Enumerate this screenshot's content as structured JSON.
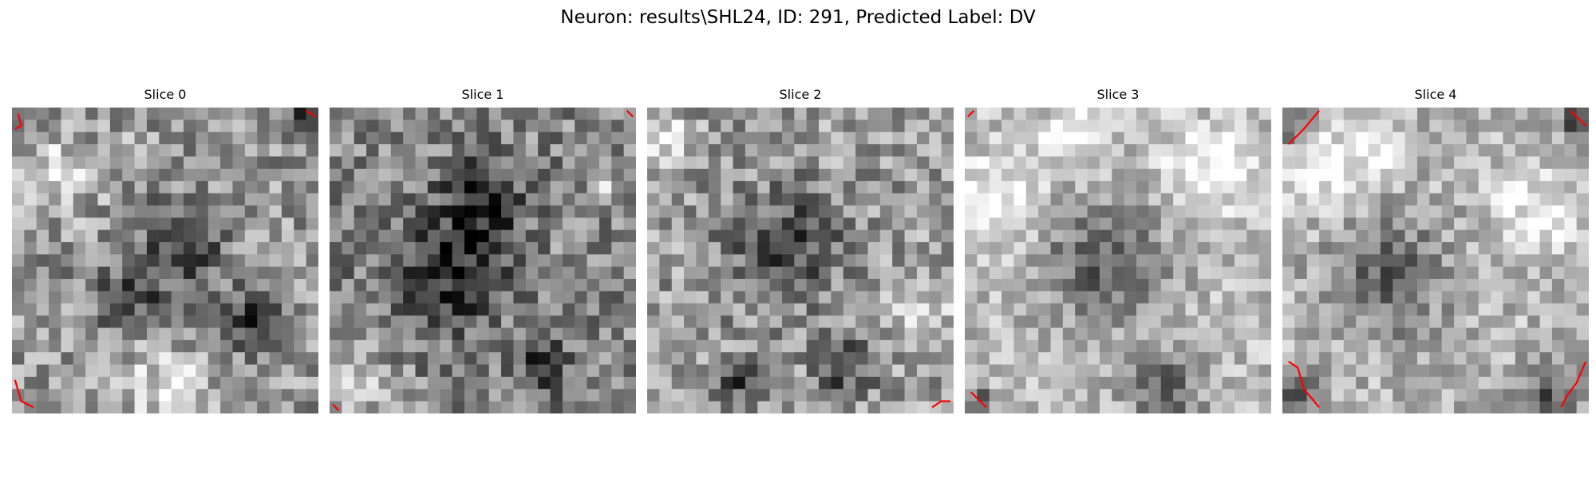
{
  "figure": {
    "title": "Neuron: results\\SHL24, ID: 291, Predicted Label: DV"
  },
  "slices": [
    {
      "title": "Slice 0",
      "base": 150,
      "contrast": 60,
      "seed": 11,
      "dark_spots": [
        [
          0.38,
          0.62,
          0.1
        ],
        [
          0.8,
          0.7,
          0.1
        ],
        [
          0.95,
          0.05,
          0.06
        ],
        [
          0.55,
          0.45,
          0.14
        ]
      ],
      "bright_spots": [
        [
          0.37,
          0.11,
          0.03
        ],
        [
          0.15,
          0.22,
          0.12
        ],
        [
          0.5,
          0.9,
          0.12
        ]
      ],
      "contours": [
        [
          [
            0.02,
            0.02
          ],
          [
            0.03,
            0.06
          ],
          [
            0.01,
            0.07
          ]
        ],
        [
          [
            0.96,
            0.01
          ],
          [
            0.99,
            0.03
          ]
        ],
        [
          [
            0.01,
            0.89
          ],
          [
            0.03,
            0.96
          ],
          [
            0.07,
            0.98
          ]
        ]
      ]
    },
    {
      "title": "Slice 1",
      "base": 135,
      "contrast": 60,
      "seed": 23,
      "dark_spots": [
        [
          0.4,
          0.55,
          0.18
        ],
        [
          0.5,
          0.3,
          0.14
        ],
        [
          0.02,
          0.48,
          0.04
        ],
        [
          0.7,
          0.85,
          0.08
        ]
      ],
      "bright_spots": [
        [
          0.3,
          0.14,
          0.03
        ],
        [
          0.9,
          0.25,
          0.05
        ],
        [
          0.1,
          0.9,
          0.1
        ]
      ],
      "contours": [
        [
          [
            0.97,
            0.01
          ],
          [
            0.99,
            0.03
          ]
        ],
        [
          [
            0.01,
            0.97
          ],
          [
            0.03,
            0.99
          ]
        ]
      ]
    },
    {
      "title": "Slice 2",
      "base": 155,
      "contrast": 60,
      "seed": 37,
      "dark_spots": [
        [
          0.65,
          0.85,
          0.09
        ],
        [
          0.45,
          0.45,
          0.18
        ],
        [
          0.3,
          0.9,
          0.06
        ]
      ],
      "bright_spots": [
        [
          0.65,
          0.11,
          0.04
        ],
        [
          0.05,
          0.1,
          0.08
        ],
        [
          0.9,
          0.7,
          0.1
        ]
      ],
      "contours": [
        [
          [
            0.93,
            0.98
          ],
          [
            0.96,
            0.96
          ],
          [
            0.99,
            0.96
          ]
        ]
      ]
    },
    {
      "title": "Slice 3",
      "base": 185,
      "contrast": 45,
      "seed": 41,
      "dark_spots": [
        [
          0.65,
          0.92,
          0.12
        ],
        [
          0.45,
          0.5,
          0.2
        ],
        [
          0.05,
          0.95,
          0.04
        ]
      ],
      "bright_spots": [
        [
          0.1,
          0.3,
          0.14
        ],
        [
          0.8,
          0.2,
          0.14
        ],
        [
          0.35,
          0.1,
          0.1
        ]
      ],
      "contours": [
        [
          [
            0.01,
            0.03
          ],
          [
            0.03,
            0.01
          ]
        ],
        [
          [
            0.02,
            0.93
          ],
          [
            0.07,
            0.98
          ]
        ]
      ]
    },
    {
      "title": "Slice 4",
      "base": 180,
      "contrast": 48,
      "seed": 53,
      "dark_spots": [
        [
          0.35,
          0.55,
          0.18
        ],
        [
          0.05,
          0.95,
          0.08
        ],
        [
          0.85,
          0.95,
          0.1
        ],
        [
          0.95,
          0.05,
          0.06
        ],
        [
          0.03,
          0.08,
          0.06
        ]
      ],
      "bright_spots": [
        [
          0.12,
          0.2,
          0.12
        ],
        [
          0.85,
          0.35,
          0.14
        ],
        [
          0.3,
          0.12,
          0.1
        ]
      ],
      "contours": [
        [
          [
            0.02,
            0.12
          ],
          [
            0.07,
            0.07
          ],
          [
            0.12,
            0.01
          ]
        ],
        [
          [
            0.94,
            0.01
          ],
          [
            0.99,
            0.06
          ]
        ],
        [
          [
            0.02,
            0.83
          ],
          [
            0.05,
            0.85
          ],
          [
            0.07,
            0.92
          ],
          [
            0.12,
            0.98
          ]
        ],
        [
          [
            0.99,
            0.83
          ],
          [
            0.96,
            0.9
          ],
          [
            0.93,
            0.94
          ],
          [
            0.91,
            0.98
          ]
        ]
      ]
    }
  ]
}
